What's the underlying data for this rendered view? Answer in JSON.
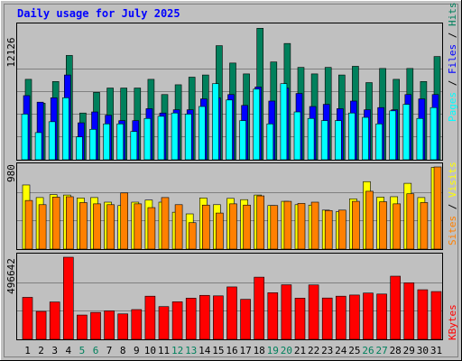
{
  "chart_data": [
    {
      "type": "bar",
      "title": "Daily usage for July 2025",
      "categories": [
        "1",
        "2",
        "3",
        "4",
        "5",
        "6",
        "7",
        "8",
        "9",
        "10",
        "11",
        "12",
        "13",
        "14",
        "15",
        "16",
        "17",
        "18",
        "19",
        "20",
        "21",
        "22",
        "23",
        "24",
        "25",
        "26",
        "27",
        "28",
        "29",
        "30",
        "31"
      ],
      "weekend_days": [
        "5",
        "6",
        "12",
        "13",
        "19",
        "20",
        "26",
        "27"
      ],
      "ylabel_ticks": [
        "12126"
      ],
      "ylim": [
        0,
        12126
      ],
      "series": [
        {
          "name": "Hits",
          "color": "#00805c",
          "values": [
            7400,
            5200,
            7200,
            9600,
            4300,
            6200,
            6600,
            6600,
            6600,
            7400,
            6000,
            6900,
            7600,
            7800,
            10500,
            8900,
            7900,
            12100,
            9000,
            10700,
            8500,
            7900,
            8500,
            7800,
            8600,
            7100,
            8400,
            7400,
            8400,
            7200,
            9500
          ]
        },
        {
          "name": "Files",
          "color": "#0000ff",
          "values": [
            5900,
            5300,
            5700,
            7800,
            3400,
            4400,
            4100,
            3600,
            3600,
            4700,
            4300,
            4600,
            4600,
            5600,
            5700,
            6000,
            5000,
            6700,
            5400,
            6600,
            6100,
            4900,
            5100,
            4700,
            5400,
            4600,
            4800,
            4600,
            6000,
            5600,
            6000
          ]
        },
        {
          "name": "Pages",
          "color": "#00ffff",
          "values": [
            4200,
            2500,
            3500,
            5700,
            2100,
            2800,
            3300,
            3300,
            2600,
            3800,
            4000,
            4300,
            4200,
            4900,
            7000,
            5500,
            3600,
            6500,
            3300,
            7000,
            4400,
            3800,
            3600,
            3600,
            4300,
            3900,
            3300,
            4500,
            5100,
            3800,
            4800
          ]
        }
      ],
      "legend": [
        "Pages",
        "Files",
        "Hits"
      ]
    },
    {
      "type": "bar",
      "categories": [
        "1",
        "2",
        "3",
        "4",
        "5",
        "6",
        "7",
        "8",
        "9",
        "10",
        "11",
        "12",
        "13",
        "14",
        "15",
        "16",
        "17",
        "18",
        "19",
        "20",
        "21",
        "22",
        "23",
        "24",
        "25",
        "26",
        "27",
        "28",
        "29",
        "30",
        "31"
      ],
      "ylabel_ticks": [
        "980"
      ],
      "ylim": [
        0,
        980
      ],
      "series": [
        {
          "name": "Visits",
          "color": "#ffff00",
          "values": [
            765,
            615,
            650,
            645,
            610,
            615,
            560,
            520,
            560,
            585,
            560,
            440,
            420,
            610,
            530,
            605,
            590,
            645,
            520,
            570,
            530,
            525,
            465,
            445,
            600,
            805,
            620,
            625,
            785,
            615,
            975
          ]
        },
        {
          "name": "Sites",
          "color": "#ff8000",
          "values": [
            580,
            530,
            620,
            625,
            555,
            540,
            530,
            670,
            540,
            495,
            615,
            530,
            315,
            525,
            430,
            540,
            525,
            635,
            520,
            570,
            545,
            560,
            460,
            465,
            570,
            690,
            565,
            540,
            660,
            555,
            980
          ]
        }
      ],
      "legend": [
        "Sites",
        "Visits"
      ]
    },
    {
      "type": "bar",
      "categories": [
        "1",
        "2",
        "3",
        "4",
        "5",
        "6",
        "7",
        "8",
        "9",
        "10",
        "11",
        "12",
        "13",
        "14",
        "15",
        "16",
        "17",
        "18",
        "19",
        "20",
        "21",
        "22",
        "23",
        "24",
        "25",
        "26",
        "27",
        "28",
        "29",
        "30",
        "31"
      ],
      "ylabel_ticks": [
        "496642"
      ],
      "ylim": [
        0,
        496642
      ],
      "series": [
        {
          "name": "KBytes",
          "color": "#ff0000",
          "values": [
            254000,
            169000,
            226000,
            496642,
            147000,
            163000,
            172000,
            154000,
            180000,
            261000,
            198000,
            227000,
            249000,
            266000,
            263000,
            317000,
            242000,
            376000,
            282000,
            330000,
            249000,
            329000,
            250000,
            261000,
            268000,
            280000,
            274000,
            382000,
            342000,
            300000,
            289000
          ]
        }
      ],
      "legend": [
        "KBytes"
      ]
    }
  ]
}
